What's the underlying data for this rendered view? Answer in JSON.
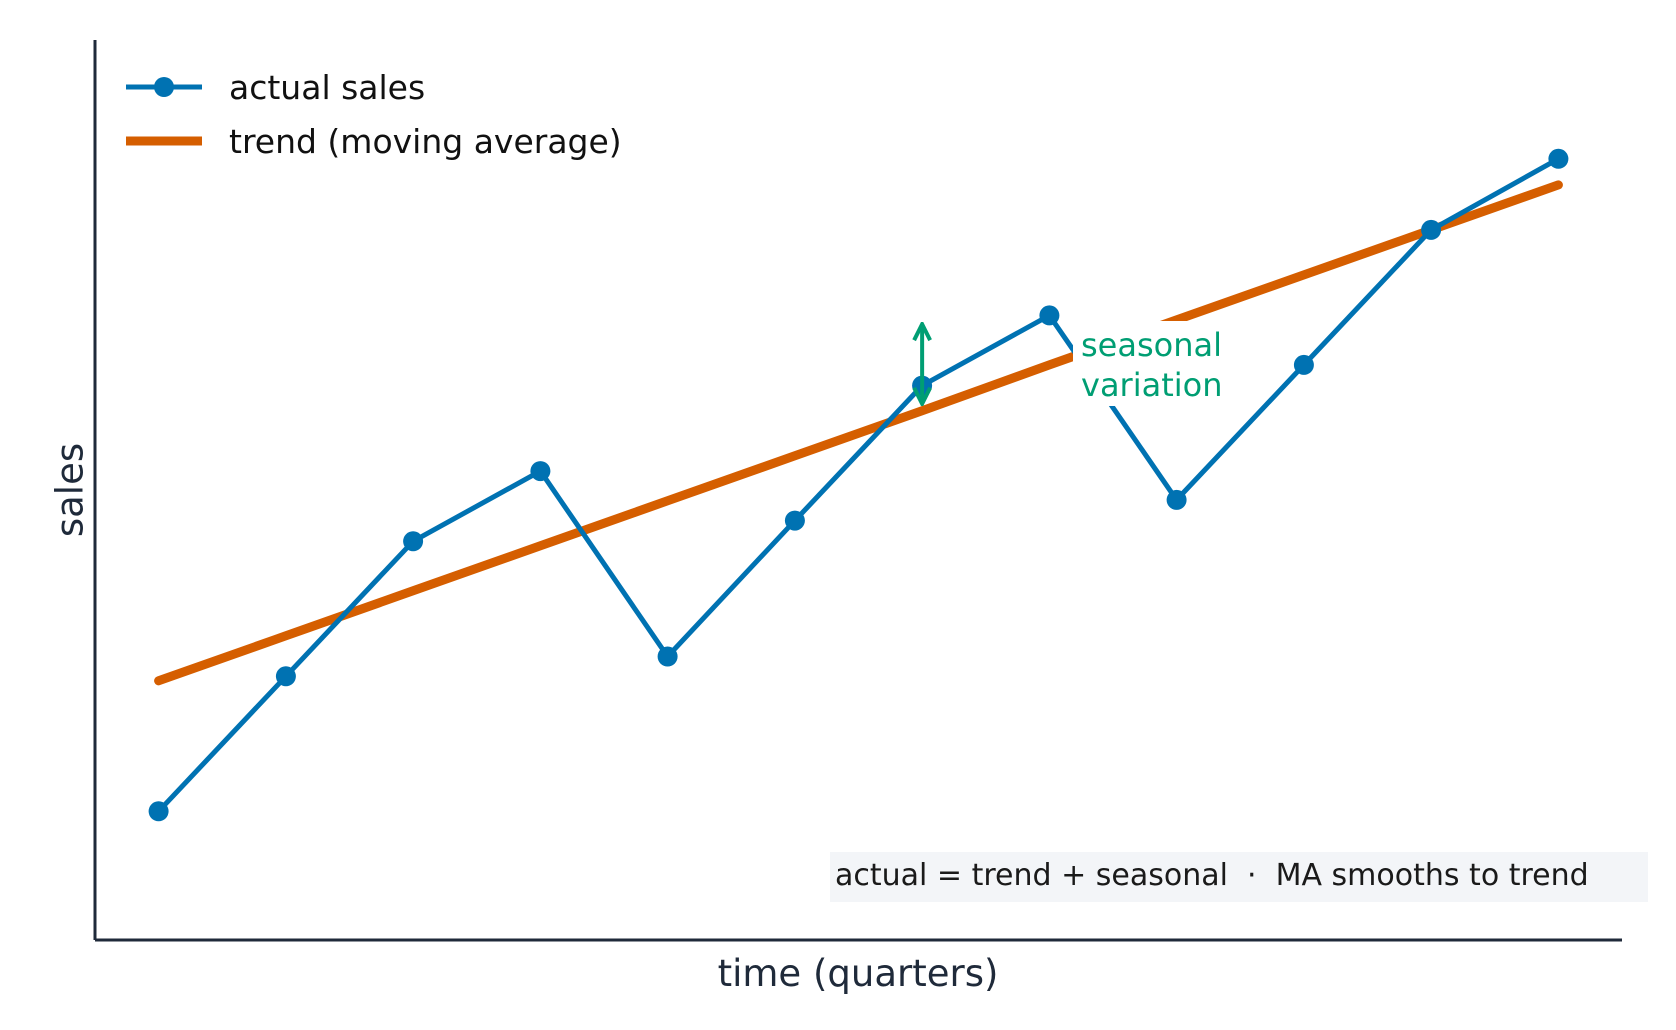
{
  "chart_data": {
    "type": "line",
    "xlabel": "time (quarters)",
    "ylabel": "sales",
    "ticks_shown": false,
    "grid": false,
    "legend_position": "top-left",
    "x": [
      1,
      2,
      3,
      4,
      5,
      6,
      7,
      8,
      9,
      10,
      11,
      12
    ],
    "xlim": [
      0.5,
      12.5
    ],
    "ylim": [
      0,
      100
    ],
    "series": [
      {
        "name": "actual sales",
        "style": "line-with-markers",
        "color": "#0072b2",
        "values": [
          14.3,
          29.3,
          44.3,
          52.1,
          31.5,
          46.6,
          61.6,
          69.4,
          48.9,
          63.9,
          78.9,
          86.8
        ]
      },
      {
        "name": "trend (moving average)",
        "style": "thick-line",
        "color": "#d55e00",
        "values": [
          28.8,
          33.8,
          38.8,
          43.8,
          48.8,
          53.8,
          58.8,
          63.9,
          68.9,
          73.9,
          78.9,
          83.9
        ]
      }
    ],
    "annotations": {
      "seasonal": {
        "lines": [
          "seasonal",
          "variation"
        ],
        "color": "#009e73",
        "at_x": 7,
        "from_y": 68.2,
        "to_y": 59.8
      },
      "note": "actual = trend + seasonal  ·  MA smooths to trend"
    }
  }
}
